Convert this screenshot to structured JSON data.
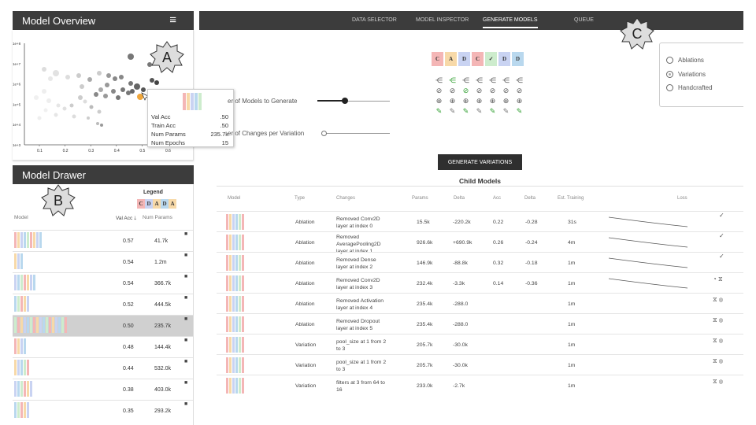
{
  "overview": {
    "title": "Model Overview",
    "y_ticks": [
      "1e+8",
      "1e+7",
      "1e+6",
      "1e+5",
      "1e+4",
      "1e+3"
    ],
    "x_ticks": [
      "0.1",
      "0.2",
      "0.3",
      "0.4",
      "0.5",
      "0.6"
    ]
  },
  "annotations": {
    "a": "A",
    "b": "B",
    "c": "C"
  },
  "tooltip": {
    "rows": [
      {
        "label": "Val Acc",
        "value": ".50"
      },
      {
        "label": "Train Acc",
        "value": ".50"
      },
      {
        "label": "Num Params",
        "value": "235.7k"
      },
      {
        "label": "Num Epochs",
        "value": "15"
      }
    ]
  },
  "drawer": {
    "title": "Model Drawer",
    "legend_title": "Legend",
    "legend_chips": [
      {
        "letter": "C",
        "color": "#f4b6b6"
      },
      {
        "letter": "D",
        "color": "#c9d3f2"
      },
      {
        "letter": "A",
        "color": "#f7d9a8"
      },
      {
        "letter": "D",
        "color": "#b9d8ee"
      },
      {
        "letter": "A",
        "color": "#f7d9a8"
      }
    ],
    "col_model": "Model",
    "col_acc": "Val Acc",
    "col_acc_sort": "🡓",
    "col_params": "Num Params",
    "rows": [
      {
        "acc": "0.57",
        "params": "41.7k"
      },
      {
        "acc": "0.54",
        "params": "1.2m"
      },
      {
        "acc": "0.54",
        "params": "366.7k"
      },
      {
        "acc": "0.52",
        "params": "444.5k"
      },
      {
        "acc": "0.50",
        "params": "235.7k"
      },
      {
        "acc": "0.48",
        "params": "144.4k"
      },
      {
        "acc": "0.44",
        "params": "532.0k"
      },
      {
        "acc": "0.38",
        "params": "403.0k"
      },
      {
        "acc": "0.35",
        "params": "293.2k"
      }
    ]
  },
  "nav": {
    "tabs": [
      "DATA SELECTOR",
      "MODEL INSPECTOR",
      "GENERATE MODELS",
      "QUEUE"
    ],
    "active": "GENERATE MODELS"
  },
  "generate": {
    "slider1_label": "er of Models to Generate",
    "slider2_label": "er of Changes per Variation",
    "layer_chips": [
      {
        "letter": "C",
        "color": "#f4b6b6"
      },
      {
        "letter": "A",
        "color": "#f7d9a8"
      },
      {
        "letter": "D",
        "color": "#c9d3f2"
      },
      {
        "letter": "C",
        "color": "#f4b6b6"
      },
      {
        "letter": "✓",
        "color": "#cdeccd"
      },
      {
        "letter": "D",
        "color": "#c9d3f2"
      },
      {
        "letter": "D",
        "color": "#b9d8ee"
      }
    ],
    "options": [
      "Ablations",
      "Variations",
      "Handcrafted"
    ],
    "selected_option": "Variations",
    "button_label": "GENERATE VARIATIONS",
    "child_title": "Child Models"
  },
  "table": {
    "headers": [
      "Model",
      "Type",
      "Changes",
      "Params",
      "Delta",
      "Acc",
      "Delta",
      "Est. Training",
      "Loss"
    ],
    "rows": [
      {
        "type": "Ablation",
        "changes": [
          "Removed Conv2D",
          "layer at index 0"
        ],
        "params": "15.5k",
        "delta": "-220.2k",
        "acc": "0.22",
        "acc_delta": "-0.28",
        "est": "31s",
        "status": "✓"
      },
      {
        "type": "Ablation",
        "changes": [
          "Removed",
          "AveragePooling2D",
          "layer at index 1"
        ],
        "params": "926.6k",
        "delta": "+690.9k",
        "acc": "0.26",
        "acc_delta": "-0.24",
        "est": "4m",
        "status": "✓"
      },
      {
        "type": "Ablation",
        "changes": [
          "Removed Dense",
          "layer at index 2"
        ],
        "params": "146.9k",
        "delta": "-88.8k",
        "acc": "0.32",
        "acc_delta": "-0.18",
        "est": "1m",
        "status": "✓"
      },
      {
        "type": "Ablation",
        "changes": [
          "Removed Conv2D",
          "layer at index 3"
        ],
        "params": "232.4k",
        "delta": "-3.3k",
        "acc": "0.14",
        "acc_delta": "-0.36",
        "est": "1m",
        "status": "◔ ⧖"
      },
      {
        "type": "Ablation",
        "changes": [
          "Removed Activation",
          "layer at index 4"
        ],
        "params": "235.4k",
        "delta": "-288.0",
        "acc": "",
        "acc_delta": "",
        "est": "1m",
        "status": "⧖ ⊗"
      },
      {
        "type": "Ablation",
        "changes": [
          "Removed Dropout",
          "layer at index 5"
        ],
        "params": "235.4k",
        "delta": "-288.0",
        "acc": "",
        "acc_delta": "",
        "est": "1m",
        "status": "⧖ ⊗"
      },
      {
        "type": "Variation",
        "changes": [
          "pool_size at 1 from 2",
          "to 3"
        ],
        "params": "205.7k",
        "delta": "-30.0k",
        "acc": "",
        "acc_delta": "",
        "est": "1m",
        "status": "⧖ ⊗"
      },
      {
        "type": "Variation",
        "changes": [
          "pool_size at 1 from 2",
          "to 3"
        ],
        "params": "205.7k",
        "delta": "-30.0k",
        "acc": "",
        "acc_delta": "",
        "est": "1m",
        "status": "⧖ ⊗"
      },
      {
        "type": "Variation",
        "changes": [
          "filters at 3 from 64 to",
          "16"
        ],
        "params": "233.0k",
        "delta": "-2.7k",
        "acc": "",
        "acc_delta": "",
        "est": "1m",
        "status": "⧖ ⊗"
      }
    ]
  }
}
